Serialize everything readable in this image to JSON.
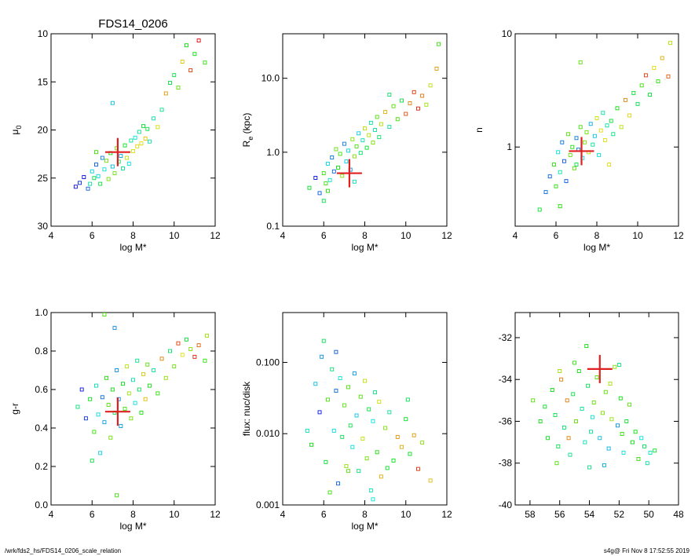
{
  "figure": {
    "footer_left": "/wrk/fds2_hs/FDS14_0206_scale_relation",
    "footer_right": "s4g@  Fri Nov  8 17:52:55 2019"
  },
  "chart_data": [
    {
      "type": "scatter",
      "title": "FDS14_0206",
      "xlabel": "log M*",
      "ylabel": "μ0",
      "xlim": [
        4,
        12
      ],
      "ylim": [
        30,
        10
      ],
      "yscale": "linear",
      "yreverse": true,
      "xticks": [
        4,
        6,
        8,
        10,
        12
      ],
      "xtick_labels": [
        "4",
        "6",
        "8",
        "10",
        "12"
      ],
      "yticks": [
        10,
        15,
        20,
        25,
        30
      ],
      "ytick_labels": [
        "10",
        "15",
        "20",
        "25",
        "30"
      ],
      "points": [
        [
          5.2,
          25.9
        ],
        [
          5.4,
          25.5
        ],
        [
          5.6,
          24.9
        ],
        [
          5.8,
          26.1
        ],
        [
          6.0,
          24.3
        ],
        [
          6.1,
          25.0
        ],
        [
          6.2,
          23.6
        ],
        [
          6.3,
          24.8
        ],
        [
          6.4,
          25.6
        ],
        [
          6.5,
          22.9
        ],
        [
          6.6,
          24.1
        ],
        [
          6.7,
          23.2
        ],
        [
          6.8,
          25.1
        ],
        [
          6.9,
          22.4
        ],
        [
          7.0,
          23.8
        ],
        [
          7.1,
          24.5
        ],
        [
          7.2,
          21.9
        ],
        [
          7.3,
          23.3
        ],
        [
          7.4,
          22.7
        ],
        [
          7.5,
          24.0
        ],
        [
          7.6,
          21.6
        ],
        [
          7.7,
          22.9
        ],
        [
          7.8,
          23.5
        ],
        [
          7.9,
          21.1
        ],
        [
          8.0,
          22.2
        ],
        [
          8.1,
          20.8
        ],
        [
          8.2,
          21.7
        ],
        [
          8.3,
          20.2
        ],
        [
          8.4,
          21.4
        ],
        [
          8.5,
          19.6
        ],
        [
          8.6,
          20.9
        ],
        [
          8.7,
          19.9
        ],
        [
          8.8,
          21.2
        ],
        [
          9.0,
          18.8
        ],
        [
          9.2,
          19.7
        ],
        [
          9.4,
          17.9
        ],
        [
          9.6,
          16.2
        ],
        [
          9.8,
          15.1
        ],
        [
          10.0,
          14.3
        ],
        [
          10.2,
          15.6
        ],
        [
          10.4,
          12.9
        ],
        [
          10.6,
          11.2
        ],
        [
          10.8,
          13.8
        ],
        [
          11.0,
          12.1
        ],
        [
          11.2,
          10.7
        ],
        [
          11.5,
          13.0
        ],
        [
          11.6,
          8.5
        ],
        [
          7.0,
          17.2
        ],
        [
          6.2,
          22.3
        ],
        [
          5.9,
          25.6
        ]
      ],
      "marker": {
        "x": 7.25,
        "y": 22.3
      }
    },
    {
      "type": "scatter",
      "xlabel": "log M*",
      "ylabel": "Re (kpc)",
      "ylabel_main": "R",
      "ylabel_sub": "e",
      "ylabel_rest": " (kpc)",
      "xlim": [
        4,
        12
      ],
      "ylim": [
        0.1,
        40
      ],
      "yscale": "log",
      "xticks": [
        4,
        6,
        8,
        10,
        12
      ],
      "xtick_labels": [
        "4",
        "6",
        "8",
        "10",
        "12"
      ],
      "yticks": [
        0.1,
        1.0,
        10.0
      ],
      "ytick_labels": [
        "0.1",
        "1.0",
        "10.0"
      ],
      "points": [
        [
          5.3,
          0.33
        ],
        [
          5.6,
          0.45
        ],
        [
          5.8,
          0.28
        ],
        [
          6.0,
          0.52
        ],
        [
          6.1,
          0.38
        ],
        [
          6.2,
          0.7
        ],
        [
          6.3,
          0.42
        ],
        [
          6.4,
          0.85
        ],
        [
          6.5,
          0.55
        ],
        [
          6.6,
          1.1
        ],
        [
          6.7,
          0.62
        ],
        [
          6.8,
          0.95
        ],
        [
          6.9,
          0.48
        ],
        [
          7.0,
          1.3
        ],
        [
          7.1,
          0.75
        ],
        [
          7.2,
          1.05
        ],
        [
          7.3,
          0.58
        ],
        [
          7.4,
          1.5
        ],
        [
          7.5,
          0.88
        ],
        [
          7.6,
          1.2
        ],
        [
          7.7,
          1.8
        ],
        [
          7.8,
          0.98
        ],
        [
          7.9,
          1.45
        ],
        [
          8.0,
          2.1
        ],
        [
          8.1,
          1.15
        ],
        [
          8.2,
          1.7
        ],
        [
          8.3,
          2.5
        ],
        [
          8.4,
          1.35
        ],
        [
          8.5,
          2.0
        ],
        [
          8.6,
          3.0
        ],
        [
          8.7,
          1.6
        ],
        [
          8.8,
          2.4
        ],
        [
          9.0,
          3.5
        ],
        [
          9.2,
          2.2
        ],
        [
          9.4,
          4.2
        ],
        [
          9.6,
          2.8
        ],
        [
          9.8,
          5.0
        ],
        [
          10.0,
          3.3
        ],
        [
          10.2,
          4.6
        ],
        [
          10.4,
          6.5
        ],
        [
          10.6,
          3.9
        ],
        [
          10.8,
          5.8
        ],
        [
          11.0,
          4.4
        ],
        [
          11.2,
          8.0
        ],
        [
          11.5,
          13.5
        ],
        [
          11.6,
          29.0
        ],
        [
          6.0,
          0.22
        ],
        [
          6.2,
          0.3
        ],
        [
          7.5,
          0.4
        ],
        [
          9.2,
          6.0
        ]
      ],
      "marker": {
        "x": 7.25,
        "y": 0.52
      }
    },
    {
      "type": "scatter",
      "xlabel": "log M*",
      "ylabel": "n",
      "xlim": [
        4,
        12
      ],
      "ylim": [
        0.2,
        10
      ],
      "yscale": "log",
      "xticks": [
        4,
        6,
        8,
        10,
        12
      ],
      "xtick_labels": [
        "4",
        "6",
        "8",
        "10",
        "12"
      ],
      "yticks": [
        1,
        10
      ],
      "ytick_labels": [
        "1",
        "10"
      ],
      "points": [
        [
          5.2,
          0.28
        ],
        [
          5.5,
          0.4
        ],
        [
          5.7,
          0.55
        ],
        [
          5.9,
          0.7
        ],
        [
          6.0,
          0.45
        ],
        [
          6.1,
          0.9
        ],
        [
          6.2,
          0.6
        ],
        [
          6.3,
          1.1
        ],
        [
          6.4,
          0.75
        ],
        [
          6.5,
          0.5
        ],
        [
          6.6,
          1.3
        ],
        [
          6.7,
          0.85
        ],
        [
          6.8,
          1.0
        ],
        [
          6.9,
          0.65
        ],
        [
          7.0,
          1.2
        ],
        [
          7.1,
          0.95
        ],
        [
          7.2,
          1.5
        ],
        [
          7.3,
          0.8
        ],
        [
          7.4,
          1.1
        ],
        [
          7.5,
          1.35
        ],
        [
          7.6,
          0.9
        ],
        [
          7.7,
          1.6
        ],
        [
          7.8,
          1.05
        ],
        [
          7.9,
          1.25
        ],
        [
          8.0,
          1.8
        ],
        [
          8.1,
          0.85
        ],
        [
          8.2,
          1.4
        ],
        [
          8.3,
          2.0
        ],
        [
          8.4,
          1.15
        ],
        [
          8.5,
          1.55
        ],
        [
          8.6,
          0.7
        ],
        [
          8.7,
          1.7
        ],
        [
          8.8,
          1.3
        ],
        [
          9.0,
          2.2
        ],
        [
          9.2,
          1.5
        ],
        [
          9.4,
          2.6
        ],
        [
          9.6,
          1.9
        ],
        [
          9.8,
          3.0
        ],
        [
          10.0,
          2.4
        ],
        [
          10.2,
          3.5
        ],
        [
          10.4,
          4.3
        ],
        [
          10.6,
          2.9
        ],
        [
          10.8,
          5.0
        ],
        [
          11.0,
          3.8
        ],
        [
          11.2,
          6.1
        ],
        [
          11.5,
          4.2
        ],
        [
          11.6,
          8.3
        ],
        [
          7.2,
          5.6
        ],
        [
          6.2,
          0.3
        ],
        [
          7.0,
          0.7
        ]
      ],
      "marker": {
        "x": 7.25,
        "y": 0.92
      }
    },
    {
      "type": "scatter",
      "xlabel": "log M*",
      "ylabel": "g-r",
      "xlim": [
        4,
        12
      ],
      "ylim": [
        0.0,
        1.0
      ],
      "yscale": "linear",
      "xticks": [
        4,
        6,
        8,
        10,
        12
      ],
      "xtick_labels": [
        "4",
        "6",
        "8",
        "10",
        "12"
      ],
      "yticks": [
        0.0,
        0.2,
        0.4,
        0.6,
        0.8,
        1.0
      ],
      "ytick_labels": [
        "0.0",
        "0.2",
        "0.4",
        "0.6",
        "0.8",
        "1.0"
      ],
      "points": [
        [
          5.3,
          0.51
        ],
        [
          5.5,
          0.6
        ],
        [
          5.7,
          0.45
        ],
        [
          5.9,
          0.55
        ],
        [
          6.0,
          0.23
        ],
        [
          6.1,
          0.38
        ],
        [
          6.2,
          0.62
        ],
        [
          6.3,
          0.47
        ],
        [
          6.4,
          0.27
        ],
        [
          6.5,
          0.56
        ],
        [
          6.6,
          0.43
        ],
        [
          6.7,
          0.66
        ],
        [
          6.8,
          0.52
        ],
        [
          6.9,
          0.35
        ],
        [
          7.0,
          0.6
        ],
        [
          7.1,
          0.48
        ],
        [
          7.2,
          0.7
        ],
        [
          7.3,
          0.55
        ],
        [
          7.4,
          0.41
        ],
        [
          7.5,
          0.63
        ],
        [
          7.6,
          0.5
        ],
        [
          7.7,
          0.72
        ],
        [
          7.8,
          0.58
        ],
        [
          7.9,
          0.45
        ],
        [
          8.0,
          0.65
        ],
        [
          8.1,
          0.53
        ],
        [
          8.2,
          0.75
        ],
        [
          8.3,
          0.6
        ],
        [
          8.4,
          0.48
        ],
        [
          8.5,
          0.68
        ],
        [
          8.6,
          0.55
        ],
        [
          8.7,
          0.73
        ],
        [
          8.8,
          0.62
        ],
        [
          9.0,
          0.7
        ],
        [
          9.2,
          0.58
        ],
        [
          9.4,
          0.76
        ],
        [
          9.6,
          0.66
        ],
        [
          9.8,
          0.8
        ],
        [
          10.0,
          0.72
        ],
        [
          10.2,
          0.84
        ],
        [
          10.4,
          0.78
        ],
        [
          10.6,
          0.86
        ],
        [
          10.8,
          0.81
        ],
        [
          11.0,
          0.77
        ],
        [
          11.2,
          0.83
        ],
        [
          11.5,
          0.75
        ],
        [
          11.6,
          0.88
        ],
        [
          6.6,
          0.99
        ],
        [
          7.1,
          0.92
        ],
        [
          7.2,
          0.05
        ]
      ],
      "marker": {
        "x": 7.25,
        "y": 0.485
      }
    },
    {
      "type": "scatter",
      "xlabel": "log M*",
      "ylabel": "flux: nuc/disk",
      "xlim": [
        4,
        12
      ],
      "ylim": [
        0.001,
        0.5
      ],
      "yscale": "log",
      "xticks": [
        4,
        6,
        8,
        10,
        12
      ],
      "xtick_labels": [
        "4",
        "6",
        "8",
        "10",
        "12"
      ],
      "yticks": [
        0.001,
        0.01,
        0.1
      ],
      "ytick_labels": [
        "0.001",
        "0.010",
        "0.100"
      ],
      "points": [
        [
          5.4,
          0.007
        ],
        [
          5.6,
          0.05
        ],
        [
          5.8,
          0.02
        ],
        [
          5.9,
          0.12
        ],
        [
          6.0,
          0.2
        ],
        [
          6.1,
          0.004
        ],
        [
          6.2,
          0.03
        ],
        [
          6.3,
          0.0015
        ],
        [
          6.4,
          0.08
        ],
        [
          6.5,
          0.011
        ],
        [
          6.6,
          0.04
        ],
        [
          6.7,
          0.002
        ],
        [
          6.8,
          0.06
        ],
        [
          6.9,
          0.009
        ],
        [
          7.0,
          0.025
        ],
        [
          7.1,
          0.0035
        ],
        [
          7.2,
          0.045
        ],
        [
          7.3,
          0.013
        ],
        [
          7.4,
          0.0065
        ],
        [
          7.5,
          0.07
        ],
        [
          7.6,
          0.018
        ],
        [
          7.7,
          0.003
        ],
        [
          7.8,
          0.033
        ],
        [
          7.9,
          0.0085
        ],
        [
          8.0,
          0.055
        ],
        [
          8.1,
          0.0045
        ],
        [
          8.2,
          0.022
        ],
        [
          8.3,
          0.0016
        ],
        [
          8.4,
          0.015
        ],
        [
          8.5,
          0.038
        ],
        [
          8.6,
          0.0055
        ],
        [
          8.7,
          0.028
        ],
        [
          8.8,
          0.0025
        ],
        [
          9.0,
          0.012
        ],
        [
          9.2,
          0.02
        ],
        [
          9.4,
          0.0042
        ],
        [
          9.6,
          0.009
        ],
        [
          9.8,
          0.0065
        ],
        [
          10.0,
          0.016
        ],
        [
          10.2,
          0.0052
        ],
        [
          10.4,
          0.0095
        ],
        [
          10.6,
          0.0032
        ],
        [
          10.8,
          0.0075
        ],
        [
          11.2,
          0.0022
        ],
        [
          6.6,
          0.14
        ],
        [
          7.2,
          0.003
        ],
        [
          5.2,
          0.011
        ],
        [
          8.4,
          0.0012
        ],
        [
          9.1,
          0.0033
        ],
        [
          10.1,
          0.03
        ]
      ],
      "marker": null
    },
    {
      "type": "scatter",
      "xlabel": "",
      "ylabel": "",
      "xlim": [
        59,
        48
      ],
      "ylim": [
        -40,
        -30.8
      ],
      "yscale": "linear",
      "xreverse": true,
      "xticks": [
        58,
        56,
        54,
        52,
        50,
        48
      ],
      "xtick_labels": [
        "58",
        "56",
        "54",
        "52",
        "50",
        "48"
      ],
      "yticks": [
        -40,
        -38,
        -36,
        -34,
        -32
      ],
      "ytick_labels": [
        "-40",
        "-38",
        "-36",
        "-34",
        "-32"
      ],
      "points": [
        [
          57.3,
          -36.0
        ],
        [
          57.0,
          -35.3
        ],
        [
          56.8,
          -36.8
        ],
        [
          56.5,
          -34.5
        ],
        [
          56.3,
          -35.7
        ],
        [
          56.1,
          -37.2
        ],
        [
          55.9,
          -34.0
        ],
        [
          55.7,
          -36.3
        ],
        [
          55.5,
          -35.0
        ],
        [
          55.3,
          -37.6
        ],
        [
          55.1,
          -34.7
        ],
        [
          54.9,
          -36.0
        ],
        [
          54.7,
          -33.6
        ],
        [
          54.5,
          -35.4
        ],
        [
          54.3,
          -37.0
        ],
        [
          54.1,
          -34.3
        ],
        [
          53.9,
          -36.5
        ],
        [
          53.7,
          -35.1
        ],
        [
          53.5,
          -33.9
        ],
        [
          53.3,
          -36.8
        ],
        [
          53.1,
          -35.6
        ],
        [
          52.9,
          -34.6
        ],
        [
          52.7,
          -37.3
        ],
        [
          52.5,
          -35.9
        ],
        [
          52.3,
          -33.4
        ],
        [
          52.1,
          -36.2
        ],
        [
          51.9,
          -34.9
        ],
        [
          51.7,
          -37.5
        ],
        [
          51.5,
          -36.0
        ],
        [
          51.3,
          -35.2
        ],
        [
          51.1,
          -37.0
        ],
        [
          50.9,
          -36.5
        ],
        [
          50.7,
          -37.8
        ],
        [
          50.5,
          -36.8
        ],
        [
          50.3,
          -37.2
        ],
        [
          50.1,
          -38.0
        ],
        [
          49.9,
          -37.5
        ],
        [
          49.6,
          -37.4
        ],
        [
          56.0,
          -33.6
        ],
        [
          55.0,
          -33.2
        ],
        [
          54.0,
          -38.2
        ],
        [
          53.0,
          -38.1
        ],
        [
          52.0,
          -33.3
        ],
        [
          56.2,
          -38.0
        ],
        [
          57.8,
          -35.0
        ],
        [
          55.4,
          -36.8
        ],
        [
          53.8,
          -35.8
        ],
        [
          52.6,
          -34.2
        ],
        [
          51.8,
          -36.6
        ],
        [
          54.2,
          -32.4
        ]
      ],
      "marker": {
        "x": 53.3,
        "y": -33.5
      }
    }
  ]
}
